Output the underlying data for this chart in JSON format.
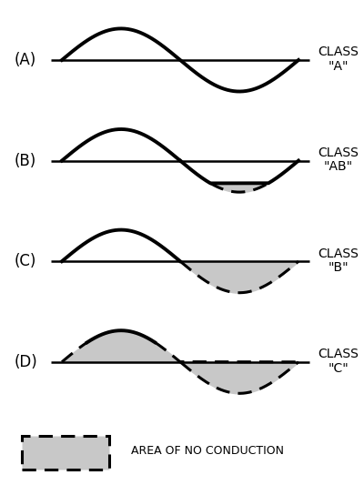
{
  "background_color": "#ffffff",
  "panels": [
    {
      "label": "(A)",
      "class_line1": "CLASS",
      "class_line2": "\"A\"",
      "type": "A"
    },
    {
      "label": "(B)",
      "class_line1": "CLASS",
      "class_line2": "\"AB\"",
      "type": "AB"
    },
    {
      "label": "(C)",
      "class_line1": "CLASS",
      "class_line2": "\"B\"",
      "type": "B"
    },
    {
      "label": "(D)",
      "class_line1": "CLASS",
      "class_line2": "\"C\"",
      "type": "C"
    }
  ],
  "shade_color": "#c8c8c8",
  "line_color": "#000000",
  "line_width": 2.8,
  "dashed_linewidth": 2.2,
  "label_fontsize": 12,
  "class_fontsize": 10,
  "legend_text": "AREA OF NO CONDUCTION",
  "legend_fontsize": 9,
  "ab_clip": -0.72,
  "c_clip": 0.62
}
